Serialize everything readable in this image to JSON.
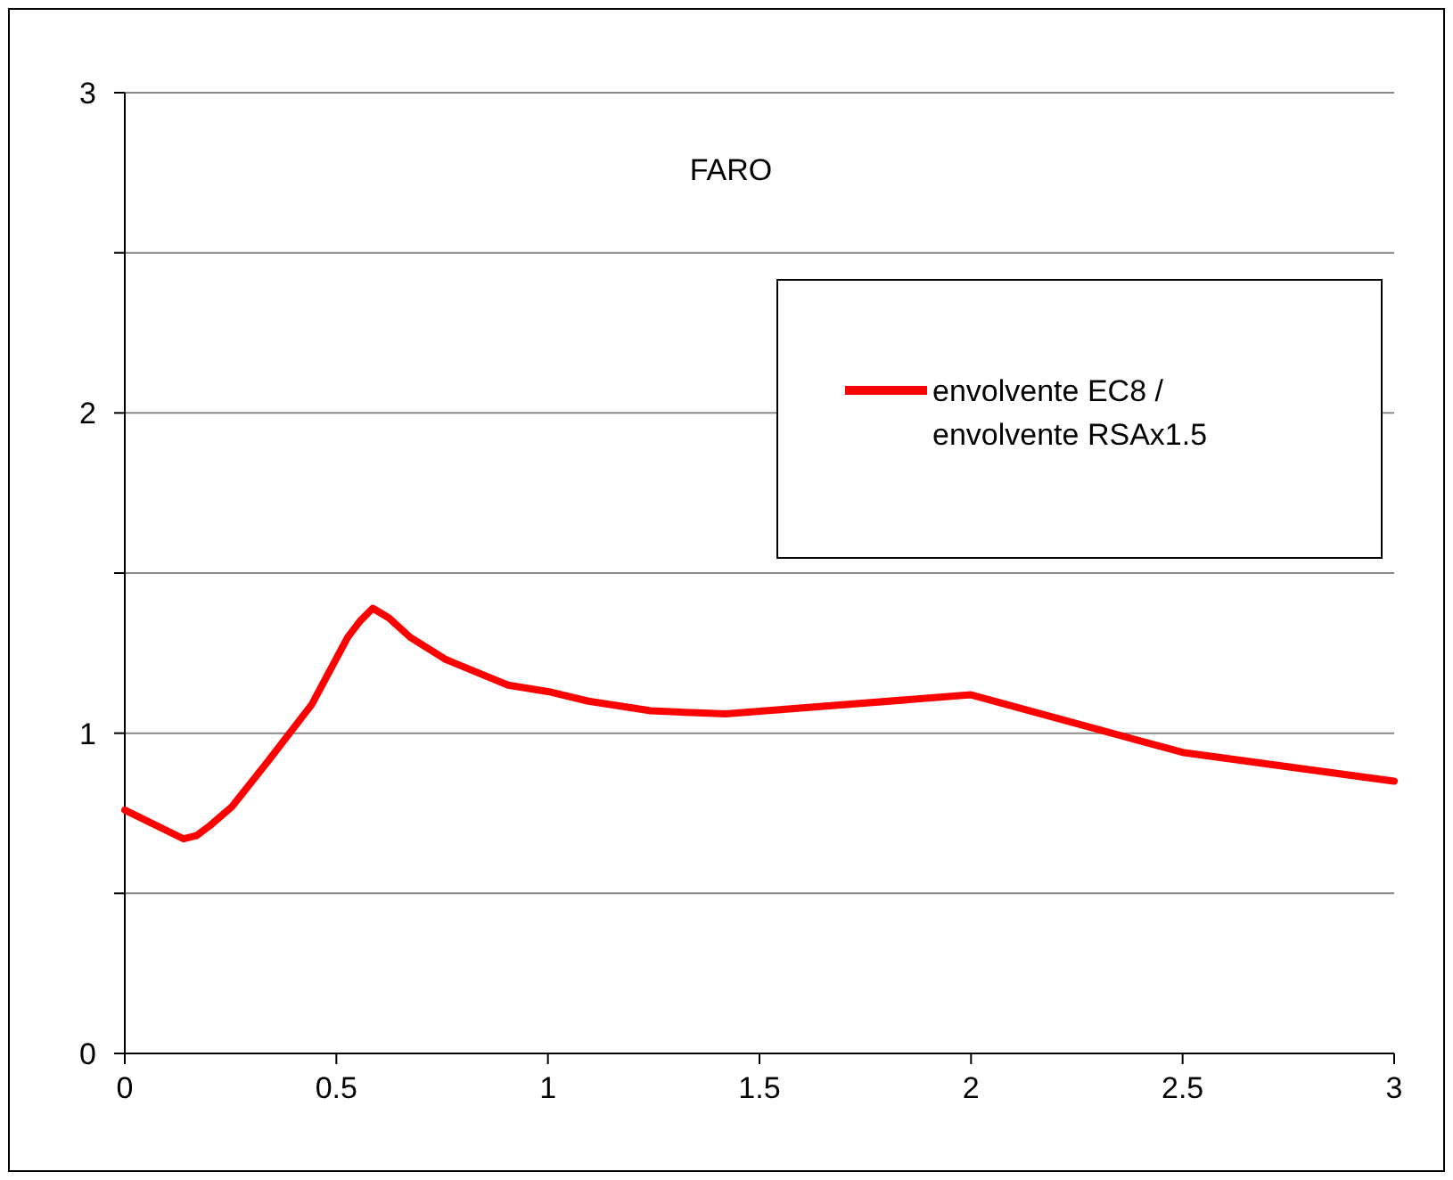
{
  "chart_data": {
    "type": "line",
    "title": "FARO",
    "x": [
      0,
      0.139,
      0.169,
      0.2,
      0.253,
      0.337,
      0.442,
      0.527,
      0.556,
      0.586,
      0.624,
      0.674,
      0.759,
      0.906,
      1.0,
      1.096,
      1.243,
      1.42,
      2.0,
      2.5,
      3.0
    ],
    "series": [
      {
        "name": "envolvente EC8 / envolvente RSAx1.5",
        "color": "#ff0000",
        "values": [
          0.76,
          0.67,
          0.68,
          0.71,
          0.77,
          0.91,
          1.09,
          1.3,
          1.35,
          1.39,
          1.36,
          1.3,
          1.23,
          1.15,
          1.13,
          1.1,
          1.07,
          1.06,
          1.12,
          0.94,
          0.85
        ]
      }
    ],
    "xlim": [
      0,
      3
    ],
    "xticks": [
      0,
      0.5,
      1,
      1.5,
      2,
      2.5,
      3
    ],
    "ylim": [
      0,
      3
    ],
    "yticks": [
      0,
      {
        "value": 0.5,
        "label": null
      },
      1,
      {
        "value": 1.5,
        "label": null
      },
      2,
      {
        "value": 2.5,
        "label": null
      },
      3
    ],
    "grid": "y",
    "legend": "top right",
    "marker": "none",
    "line_style": "solid"
  }
}
